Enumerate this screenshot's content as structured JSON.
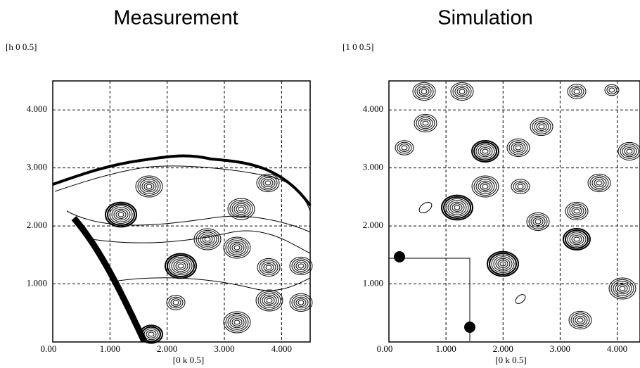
{
  "chart_data": [
    {
      "type": "contour",
      "title": "Measurement",
      "ylabel": "[h 0 0.5]",
      "xlabel": "[0 k 0.5]",
      "xlim": [
        0,
        4.5
      ],
      "ylim": [
        0,
        4.5
      ],
      "xticks": [
        {
          "value": 0,
          "label": "0.00"
        },
        {
          "value": 1,
          "label": "1.000"
        },
        {
          "value": 2,
          "label": "2.000"
        },
        {
          "value": 3,
          "label": "3.000"
        },
        {
          "value": 4,
          "label": "4.000"
        }
      ],
      "yticks": [
        {
          "value": 1,
          "label": "1.000"
        },
        {
          "value": 2,
          "label": "2.000"
        },
        {
          "value": 3,
          "label": "3.000"
        },
        {
          "value": 4,
          "label": "4.000"
        }
      ],
      "grid": true
    },
    {
      "type": "contour",
      "title": "Simulation",
      "ylabel": "[1 0 0.5]",
      "xlabel": "[0 k 0.5]",
      "xlim": [
        0,
        4.4
      ],
      "ylim": [
        0,
        4.5
      ],
      "xticks": [
        {
          "value": 0,
          "label": "0.00"
        },
        {
          "value": 1,
          "label": "1.000"
        },
        {
          "value": 2,
          "label": "2.000"
        },
        {
          "value": 3,
          "label": "3.000"
        },
        {
          "value": 4,
          "label": "4.000"
        }
      ],
      "yticks": [
        {
          "value": 1,
          "label": "1.000"
        },
        {
          "value": 2,
          "label": "2.000"
        },
        {
          "value": 3,
          "label": "3.000"
        },
        {
          "value": 4,
          "label": "4.000"
        }
      ],
      "grid": true
    }
  ]
}
